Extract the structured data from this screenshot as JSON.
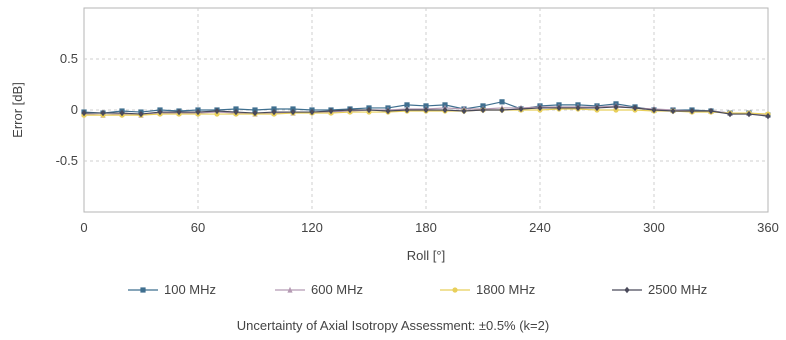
{
  "chart_data": {
    "type": "line",
    "xlabel": "Roll [°]",
    "ylabel": "Error [dB]",
    "xlim": [
      0,
      360
    ],
    "ylim": [
      -1,
      1
    ],
    "x_ticks": [
      0,
      60,
      120,
      180,
      240,
      300,
      360
    ],
    "y_ticks": [
      0.5,
      0,
      -0.5
    ],
    "y_tick_labels": [
      "0.5",
      "0",
      "-0.5"
    ],
    "grid": true,
    "legend_position": "bottom",
    "x": [
      0,
      10,
      20,
      30,
      40,
      50,
      60,
      70,
      80,
      90,
      100,
      110,
      120,
      130,
      140,
      150,
      160,
      170,
      180,
      190,
      200,
      210,
      220,
      230,
      240,
      250,
      260,
      270,
      280,
      290,
      300,
      310,
      320,
      330,
      340,
      350,
      360
    ],
    "series": [
      {
        "name": "100 MHz",
        "color": "#3f6f8f",
        "marker": "square",
        "values": [
          -0.02,
          -0.03,
          -0.01,
          -0.02,
          0.0,
          -0.01,
          0.0,
          0.0,
          0.01,
          0.0,
          0.01,
          0.01,
          0.0,
          0.0,
          0.01,
          0.02,
          0.02,
          0.05,
          0.04,
          0.05,
          0.01,
          0.04,
          0.08,
          0.01,
          0.04,
          0.05,
          0.05,
          0.04,
          0.06,
          0.03,
          0.0,
          0.0,
          0.0,
          -0.01,
          -0.03,
          -0.03,
          -0.05
        ]
      },
      {
        "name": "600 MHz",
        "color": "#b59ab3",
        "marker": "triangle",
        "values": [
          -0.04,
          -0.05,
          -0.04,
          -0.05,
          -0.03,
          -0.03,
          -0.03,
          -0.02,
          -0.03,
          -0.04,
          -0.03,
          -0.03,
          -0.02,
          -0.02,
          -0.01,
          0.0,
          0.0,
          0.01,
          0.01,
          0.02,
          0.01,
          0.01,
          0.02,
          0.02,
          0.03,
          0.03,
          0.03,
          0.03,
          0.04,
          0.02,
          0.01,
          0.0,
          -0.01,
          -0.01,
          -0.03,
          -0.03,
          -0.05
        ]
      },
      {
        "name": "1800 MHz",
        "color": "#e8cf5a",
        "marker": "circle",
        "values": [
          -0.05,
          -0.05,
          -0.05,
          -0.05,
          -0.04,
          -0.04,
          -0.04,
          -0.04,
          -0.04,
          -0.04,
          -0.04,
          -0.03,
          -0.03,
          -0.03,
          -0.02,
          -0.02,
          -0.02,
          -0.01,
          -0.01,
          -0.01,
          -0.01,
          0.0,
          0.0,
          0.0,
          0.0,
          0.01,
          0.01,
          0.0,
          0.0,
          0.0,
          -0.01,
          -0.01,
          -0.02,
          -0.02,
          -0.03,
          -0.03,
          -0.04
        ]
      },
      {
        "name": "2500 MHz",
        "color": "#4a4a5a",
        "marker": "diamond",
        "values": [
          -0.03,
          -0.03,
          -0.03,
          -0.04,
          -0.02,
          -0.02,
          -0.02,
          -0.01,
          -0.02,
          -0.03,
          -0.02,
          -0.02,
          -0.02,
          -0.01,
          0.0,
          0.0,
          -0.01,
          0.0,
          0.0,
          0.0,
          -0.01,
          0.0,
          0.0,
          0.01,
          0.02,
          0.02,
          0.02,
          0.02,
          0.03,
          0.02,
          0.0,
          -0.01,
          -0.01,
          -0.01,
          -0.04,
          -0.04,
          -0.06
        ]
      }
    ],
    "annotation": "Uncertainty of Axial Isotropy Assessment: ±0.5% (k=2)"
  }
}
